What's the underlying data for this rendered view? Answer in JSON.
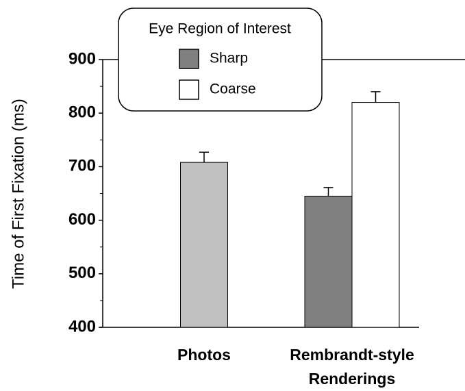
{
  "chart_data": {
    "type": "bar",
    "y_label": "Time of First Fixation (ms)",
    "legend_title": "Eye Region of Interest",
    "categories": [
      "Photos",
      "Rembrandt-style Renderings"
    ],
    "series": [
      {
        "color": "#c0c0c0",
        "values": [
          708,
          null
        ],
        "errors": [
          19,
          null
        ]
      },
      {
        "name": "Sharp",
        "color": "#808080",
        "values": [
          null,
          645
        ],
        "errors": [
          null,
          16
        ]
      },
      {
        "name": "Coarse",
        "color": "#ffffff",
        "values": [
          null,
          820
        ],
        "errors": [
          null,
          20
        ]
      }
    ],
    "ylim": [
      400,
      900
    ],
    "yticks": [
      400,
      500,
      600,
      700,
      800,
      900
    ],
    "legend": "upper left"
  }
}
